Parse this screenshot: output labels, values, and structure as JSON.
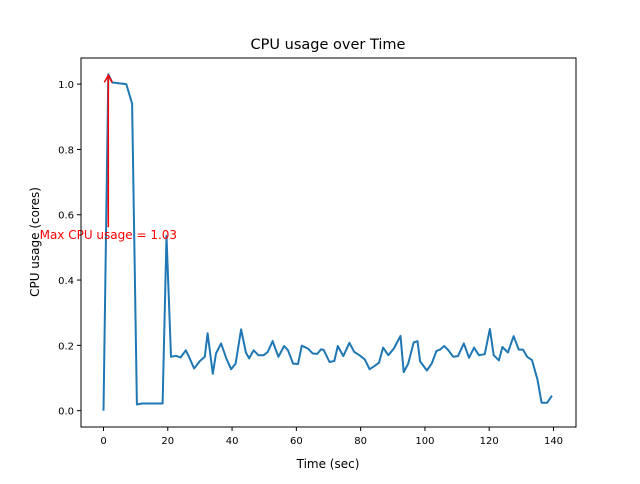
{
  "chart_data": {
    "type": "line",
    "title": "CPU usage over Time",
    "xlabel": "Time (sec)",
    "ylabel": "CPU usage (cores)",
    "xlim": [
      -7,
      147
    ],
    "ylim": [
      -0.05,
      1.08
    ],
    "grid": false,
    "xticks": [
      0,
      20,
      40,
      60,
      80,
      100,
      120,
      140
    ],
    "xtick_labels": [
      "0",
      "20",
      "40",
      "60",
      "80",
      "100",
      "120",
      "140"
    ],
    "yticks": [
      0.0,
      0.2,
      0.4,
      0.6,
      0.8,
      1.0
    ],
    "ytick_labels": [
      "0.0",
      "0.2",
      "0.4",
      "0.6",
      "0.8",
      "1.0"
    ],
    "line_color": "#1f77b4",
    "annotation": {
      "text": "Max CPU usage = 1.03",
      "xy": [
        1.5,
        1.03
      ],
      "xytext": [
        1.5,
        0.55
      ],
      "color": "#ff0000"
    },
    "series": [
      {
        "x": [
          0,
          1.5,
          2.7,
          7.1,
          8.9,
          10.4,
          12,
          18.4,
          19.6,
          21,
          22.5,
          24,
          25.6,
          26.6,
          28.2,
          30,
          31.5,
          32.4,
          34,
          35,
          36.6,
          38.2,
          39.7,
          41.1,
          42.8,
          44.3,
          45.3,
          46.7,
          48.2,
          49.8,
          51.1,
          52.6,
          54.4,
          56.2,
          57.4,
          59,
          60.5,
          61.7,
          63.6,
          65.1,
          66.5,
          67.7,
          68.5,
          70.3,
          71.8,
          72.9,
          74.6,
          76.5,
          78,
          79.6,
          81.3,
          82.8,
          84.2,
          85.7,
          87,
          88.6,
          90.3,
          92.4,
          93.4,
          94.8,
          96.5,
          97.7,
          98.5,
          100.6,
          102.1,
          103.6,
          104.7,
          106,
          107.2,
          108.8,
          110.3,
          112.1,
          113.7,
          115.3,
          116.8,
          118.6,
          120.2,
          121.4,
          123,
          124.1,
          125.8,
          127.6,
          129.2,
          130.5,
          131.8,
          133.3,
          135,
          136.3,
          138,
          139.5
        ],
        "y": [
          0,
          1.03,
          1.005,
          1.0,
          0.94,
          0.019,
          0.022,
          0.022,
          0.535,
          0.165,
          0.168,
          0.163,
          0.185,
          0.165,
          0.129,
          0.152,
          0.165,
          0.237,
          0.113,
          0.175,
          0.206,
          0.16,
          0.127,
          0.144,
          0.249,
          0.178,
          0.16,
          0.185,
          0.17,
          0.17,
          0.18,
          0.213,
          0.165,
          0.198,
          0.185,
          0.144,
          0.143,
          0.199,
          0.19,
          0.175,
          0.174,
          0.188,
          0.186,
          0.149,
          0.152,
          0.198,
          0.167,
          0.208,
          0.18,
          0.17,
          0.157,
          0.127,
          0.136,
          0.147,
          0.193,
          0.17,
          0.19,
          0.229,
          0.118,
          0.144,
          0.209,
          0.213,
          0.151,
          0.123,
          0.144,
          0.183,
          0.187,
          0.198,
          0.186,
          0.165,
          0.167,
          0.206,
          0.162,
          0.193,
          0.17,
          0.173,
          0.25,
          0.17,
          0.154,
          0.195,
          0.178,
          0.228,
          0.187,
          0.187,
          0.165,
          0.155,
          0.096,
          0.024,
          0.024,
          0.046
        ]
      }
    ]
  }
}
